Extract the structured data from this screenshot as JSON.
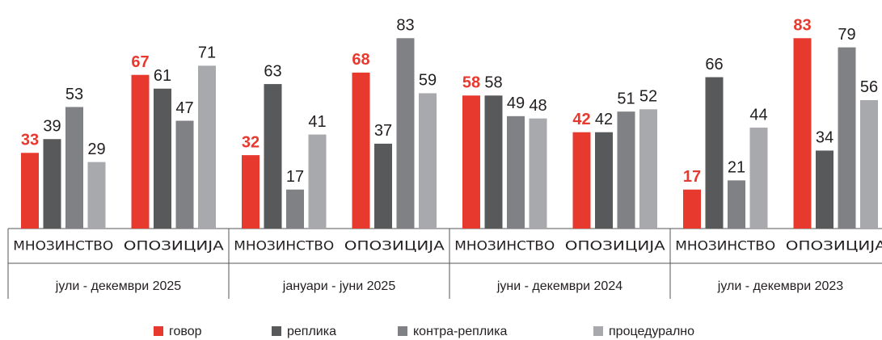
{
  "chart_data": {
    "type": "bar",
    "categories": [
      "МНОЗИНСТВО",
      "ОПОЗИЦИЈА",
      "МНОЗИНСТВО",
      "ОПОЗИЦИЈА",
      "МНОЗИНСТВО",
      "ОПОЗИЦИЈА",
      "МНОЗИНСТВО",
      "ОПОЗИЦИЈА"
    ],
    "periods": [
      "јули - декември 2025",
      "јануари - јуни 2025",
      "јуни - декември 2024",
      "јули - декември 2023"
    ],
    "series": [
      {
        "name": "говор",
        "color": "#e8392f",
        "values": [
          33,
          67,
          32,
          68,
          58,
          42,
          17,
          83
        ]
      },
      {
        "name": "реплика",
        "color": "#58595b",
        "values": [
          39,
          61,
          63,
          37,
          58,
          42,
          66,
          34
        ]
      },
      {
        "name": "контра-реплика",
        "color": "#808184",
        "values": [
          53,
          47,
          17,
          83,
          49,
          51,
          21,
          79
        ]
      },
      {
        "name": "процедурално",
        "color": "#a7a9ac",
        "values": [
          29,
          71,
          41,
          59,
          48,
          52,
          44,
          56
        ]
      }
    ]
  }
}
